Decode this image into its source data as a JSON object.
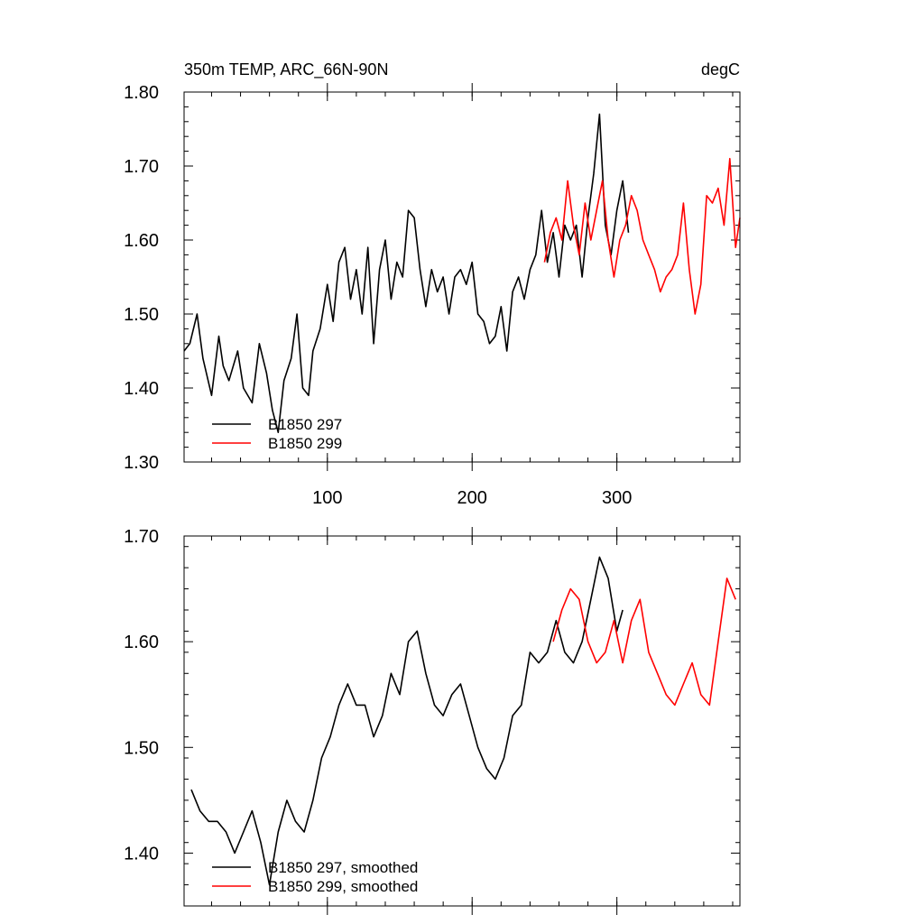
{
  "chart_data": [
    {
      "type": "line",
      "title": "350m TEMP, ARC_66N-90N",
      "units": "degC",
      "xlim": [
        1,
        385
      ],
      "ylim": [
        1.3,
        1.8
      ],
      "xticks": [
        100,
        200,
        300
      ],
      "xtick_labels": [
        "100",
        "200",
        "300"
      ],
      "yticks": [
        1.3,
        1.4,
        1.5,
        1.6,
        1.7,
        1.8
      ],
      "ytick_labels": [
        "1.30",
        "1.40",
        "1.50",
        "1.60",
        "1.70",
        "1.80"
      ],
      "legend": [
        "B1850 297",
        "B1850 299"
      ],
      "series": [
        {
          "name": "B1850 297",
          "color": "#000000",
          "x": [
            1,
            5,
            10,
            14,
            20,
            25,
            28,
            32,
            38,
            42,
            48,
            53,
            58,
            62,
            66,
            70,
            75,
            79,
            83,
            87,
            90,
            95,
            100,
            104,
            108,
            112,
            116,
            120,
            124,
            128,
            132,
            136,
            140,
            144,
            148,
            152,
            156,
            160,
            164,
            168,
            172,
            176,
            180,
            184,
            188,
            192,
            196,
            200,
            204,
            208,
            212,
            216,
            220,
            224,
            228,
            232,
            236,
            240,
            244,
            248,
            252,
            256,
            260,
            264,
            268,
            272,
            276,
            280,
            284,
            288,
            292,
            296,
            300,
            304,
            308
          ],
          "values": [
            1.45,
            1.46,
            1.5,
            1.44,
            1.39,
            1.47,
            1.43,
            1.41,
            1.45,
            1.4,
            1.38,
            1.46,
            1.42,
            1.37,
            1.34,
            1.41,
            1.44,
            1.5,
            1.4,
            1.39,
            1.45,
            1.48,
            1.54,
            1.49,
            1.57,
            1.59,
            1.52,
            1.56,
            1.5,
            1.59,
            1.46,
            1.56,
            1.6,
            1.52,
            1.57,
            1.55,
            1.64,
            1.63,
            1.56,
            1.51,
            1.56,
            1.53,
            1.55,
            1.5,
            1.55,
            1.56,
            1.54,
            1.57,
            1.5,
            1.49,
            1.46,
            1.47,
            1.51,
            1.45,
            1.53,
            1.55,
            1.52,
            1.56,
            1.58,
            1.64,
            1.57,
            1.61,
            1.55,
            1.62,
            1.6,
            1.62,
            1.55,
            1.63,
            1.69,
            1.77,
            1.62,
            1.58,
            1.64,
            1.68,
            1.61
          ]
        },
        {
          "name": "B1850 299",
          "color": "#ff0000",
          "x": [
            250,
            254,
            258,
            262,
            266,
            270,
            274,
            278,
            282,
            286,
            290,
            294,
            298,
            302,
            306,
            310,
            314,
            318,
            322,
            326,
            330,
            334,
            338,
            342,
            346,
            350,
            354,
            358,
            362,
            366,
            370,
            374,
            378,
            382,
            385
          ],
          "values": [
            1.57,
            1.61,
            1.63,
            1.6,
            1.68,
            1.62,
            1.58,
            1.65,
            1.6,
            1.64,
            1.68,
            1.6,
            1.55,
            1.6,
            1.62,
            1.66,
            1.64,
            1.6,
            1.58,
            1.56,
            1.53,
            1.55,
            1.56,
            1.58,
            1.65,
            1.56,
            1.5,
            1.54,
            1.66,
            1.65,
            1.67,
            1.62,
            1.71,
            1.59,
            1.63
          ]
        }
      ]
    },
    {
      "type": "line",
      "xlim": [
        1,
        385
      ],
      "ylim": [
        1.35,
        1.7
      ],
      "xticks": [
        100,
        200,
        300
      ],
      "yticks": [
        1.4,
        1.5,
        1.6,
        1.7
      ],
      "ytick_labels": [
        "1.40",
        "1.50",
        "1.60",
        "1.70"
      ],
      "legend": [
        "B1850 297, smoothed",
        "B1850 299, smoothed"
      ],
      "series": [
        {
          "name": "B1850 297, smoothed",
          "color": "#000000",
          "x": [
            6,
            12,
            18,
            24,
            30,
            36,
            42,
            48,
            54,
            60,
            66,
            72,
            78,
            84,
            90,
            96,
            102,
            108,
            114,
            120,
            126,
            132,
            138,
            144,
            150,
            156,
            162,
            168,
            174,
            180,
            186,
            192,
            198,
            204,
            210,
            216,
            222,
            228,
            234,
            240,
            246,
            252,
            258,
            264,
            270,
            276,
            282,
            288,
            294,
            300,
            304
          ],
          "values": [
            1.46,
            1.44,
            1.43,
            1.43,
            1.42,
            1.4,
            1.42,
            1.44,
            1.41,
            1.37,
            1.42,
            1.45,
            1.43,
            1.42,
            1.45,
            1.49,
            1.51,
            1.54,
            1.56,
            1.54,
            1.54,
            1.51,
            1.53,
            1.57,
            1.55,
            1.6,
            1.61,
            1.57,
            1.54,
            1.53,
            1.55,
            1.56,
            1.53,
            1.5,
            1.48,
            1.47,
            1.49,
            1.53,
            1.54,
            1.59,
            1.58,
            1.59,
            1.62,
            1.59,
            1.58,
            1.6,
            1.64,
            1.68,
            1.66,
            1.61,
            1.63
          ]
        },
        {
          "name": "B1850 299, smoothed",
          "color": "#ff0000",
          "x": [
            256,
            262,
            268,
            274,
            280,
            286,
            292,
            298,
            304,
            310,
            316,
            322,
            328,
            334,
            340,
            346,
            352,
            358,
            364,
            370,
            376,
            382
          ],
          "values": [
            1.6,
            1.63,
            1.65,
            1.64,
            1.6,
            1.58,
            1.59,
            1.62,
            1.58,
            1.62,
            1.64,
            1.59,
            1.57,
            1.55,
            1.54,
            1.56,
            1.58,
            1.55,
            1.54,
            1.6,
            1.66,
            1.64
          ]
        }
      ]
    }
  ]
}
